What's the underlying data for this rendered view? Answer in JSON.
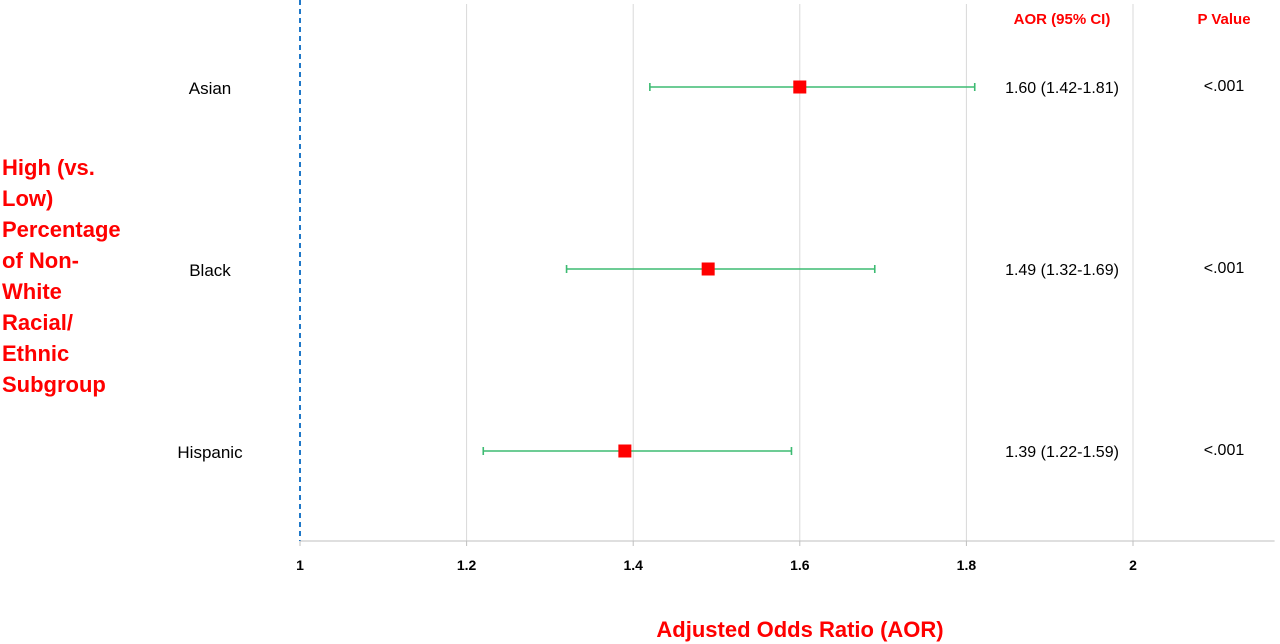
{
  "chart_data": {
    "type": "scatter",
    "subtype": "forest-plot",
    "xlabel": "Adjusted Odds Ratio (AOR)",
    "ylabel_lines": [
      "High (vs.",
      "Low)",
      "Percentage",
      "of Non-",
      "White",
      "Racial/",
      "Ethnic",
      "Subgroup"
    ],
    "xlim": [
      1,
      2.17
    ],
    "xticks": [
      1,
      1.2,
      1.4,
      1.6,
      1.8,
      2
    ],
    "xtick_labels": [
      "1",
      "1.2",
      "1.4",
      "1.6",
      "1.8",
      "2"
    ],
    "reference_line": 1,
    "grid": true,
    "column_headers": {
      "aor": "AOR (95% CI)",
      "p": "P Value"
    },
    "rows": [
      {
        "label": "Asian",
        "estimate": 1.6,
        "lower": 1.42,
        "upper": 1.81,
        "aor_text": "1.60 (1.42-1.81)",
        "p_text": "<.001"
      },
      {
        "label": "Black",
        "estimate": 1.49,
        "lower": 1.32,
        "upper": 1.69,
        "aor_text": "1.49 (1.32-1.69)",
        "p_text": "<.001"
      },
      {
        "label": "Hispanic",
        "estimate": 1.39,
        "lower": 1.22,
        "upper": 1.59,
        "aor_text": "1.39 (1.22-1.59)",
        "p_text": "<.001"
      }
    ]
  },
  "colors": {
    "point": "#ff0000",
    "ci_line": "#3dbb72",
    "reference": "#1f78c8",
    "grid": "#d9d9d9",
    "axis": "#bfbfbf",
    "title_text": "#ff0000"
  }
}
